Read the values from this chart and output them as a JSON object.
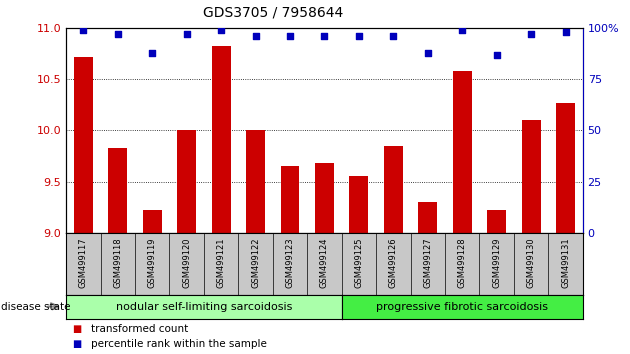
{
  "title": "GDS3705 / 7958644",
  "samples": [
    "GSM499117",
    "GSM499118",
    "GSM499119",
    "GSM499120",
    "GSM499121",
    "GSM499122",
    "GSM499123",
    "GSM499124",
    "GSM499125",
    "GSM499126",
    "GSM499127",
    "GSM499128",
    "GSM499129",
    "GSM499130",
    "GSM499131"
  ],
  "bar_values": [
    10.72,
    9.83,
    9.22,
    10.0,
    10.83,
    10.0,
    9.65,
    9.68,
    9.55,
    9.85,
    9.3,
    10.58,
    9.22,
    10.1,
    10.27
  ],
  "dot_values": [
    99,
    97,
    88,
    97,
    99,
    96,
    96,
    96,
    96,
    96,
    88,
    99,
    87,
    97,
    98
  ],
  "ylim_left": [
    9,
    11
  ],
  "ylim_right": [
    0,
    100
  ],
  "yticks_left": [
    9,
    9.5,
    10,
    10.5,
    11
  ],
  "yticks_right": [
    0,
    25,
    50,
    75,
    100
  ],
  "bar_color": "#cc0000",
  "dot_color": "#0000bb",
  "tick_area_color": "#c8c8c8",
  "group1_label": "nodular self-limiting sarcoidosis",
  "group2_label": "progressive fibrotic sarcoidosis",
  "group1_color": "#aaffaa",
  "group2_color": "#44ee44",
  "group1_count": 8,
  "group2_count": 7,
  "disease_state_label": "disease state",
  "legend_bar_label": "transformed count",
  "legend_dot_label": "percentile rank within the sample",
  "right_axis_pct_label": "100%",
  "title_fontsize": 10,
  "tick_fontsize": 8,
  "label_fontsize": 7.5,
  "group_fontsize": 8
}
